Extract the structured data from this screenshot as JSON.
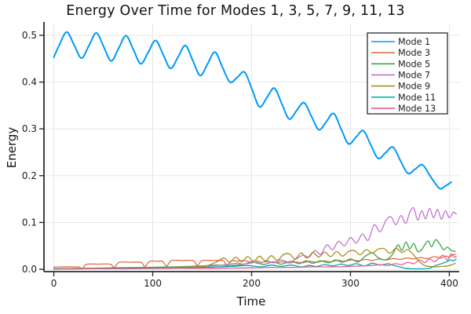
{
  "chart_data": {
    "type": "line",
    "title": "Energy Over Time for Modes 1, 3, 5, 7, 9, 11, 13",
    "xlabel": "Time",
    "ylabel": "Energy",
    "xlim": [
      -10,
      410
    ],
    "ylim": [
      -0.005,
      0.525
    ],
    "grid": true,
    "legend_position": "top-right",
    "xticks": {
      "values": [
        0,
        100,
        200,
        300,
        400
      ],
      "labels": [
        "0",
        "100",
        "200",
        "300",
        "400"
      ]
    },
    "yticks": {
      "values": [
        0.0,
        0.1,
        0.2,
        0.3,
        0.4,
        0.5
      ],
      "labels": [
        "0.0",
        "0.1",
        "0.2",
        "0.3",
        "0.4",
        "0.5"
      ]
    },
    "axis_color": "#2a2e33",
    "grid_color": "#e4e4e4",
    "legend_border_color": "#1a1a1a",
    "series": [
      {
        "name": "Mode 1",
        "color": "#009af9",
        "line_width": 2.0,
        "x": [
          0,
          5.5,
          13,
          20.5,
          28,
          35.5,
          43,
          50.5,
          58,
          65.5,
          73,
          80.5,
          88,
          95.5,
          103,
          110.5,
          118,
          125.5,
          133,
          140.5,
          148,
          155.5,
          163,
          170.5,
          178,
          185.5,
          193,
          200.5,
          208,
          215.5,
          223,
          230.5,
          238,
          245.5,
          253,
          260.5,
          268,
          275.5,
          283,
          290.5,
          298,
          305.5,
          313,
          320.5,
          328,
          335.5,
          343,
          350.5,
          358,
          365.5,
          373,
          381,
          390,
          396,
          402
        ],
        "y": [
          0.453,
          0.479,
          0.507,
          0.479,
          0.451,
          0.478,
          0.505,
          0.475,
          0.445,
          0.472,
          0.499,
          0.469,
          0.439,
          0.464,
          0.489,
          0.459,
          0.429,
          0.453,
          0.478,
          0.446,
          0.414,
          0.439,
          0.464,
          0.432,
          0.4,
          0.41,
          0.421,
          0.384,
          0.347,
          0.367,
          0.387,
          0.354,
          0.321,
          0.339,
          0.356,
          0.327,
          0.298,
          0.315,
          0.333,
          0.3,
          0.268,
          0.282,
          0.296,
          0.266,
          0.237,
          0.249,
          0.261,
          0.232,
          0.205,
          0.214,
          0.223,
          0.198,
          0.173,
          0.178,
          0.186
        ]
      },
      {
        "name": "Mode 3",
        "color": "#e26f46",
        "line_width": 1.3,
        "x": [
          0,
          5,
          15,
          25,
          29,
          33,
          45,
          57,
          61,
          66,
          77,
          88,
          92,
          97,
          105,
          110,
          114,
          119,
          130,
          141,
          145,
          150,
          160,
          171,
          175,
          180,
          186,
          192,
          198,
          204,
          210,
          217,
          224,
          231,
          238,
          245,
          252,
          259,
          266,
          273,
          280,
          287,
          294,
          301,
          308,
          315,
          322,
          329,
          336,
          343,
          350,
          357,
          364,
          371,
          378,
          385,
          391,
          396,
          400,
          403,
          406
        ],
        "y": [
          0.0045,
          0.005,
          0.0052,
          0.005,
          0.002,
          0.0105,
          0.011,
          0.0108,
          0.004,
          0.0148,
          0.015,
          0.0148,
          0.006,
          0.0168,
          0.017,
          0.0168,
          0.007,
          0.0185,
          0.0187,
          0.0185,
          0.008,
          0.0185,
          0.0187,
          0.0185,
          0.009,
          0.0185,
          0.017,
          0.019,
          0.016,
          0.0185,
          0.015,
          0.0165,
          0.014,
          0.016,
          0.0135,
          0.0155,
          0.014,
          0.017,
          0.015,
          0.018,
          0.016,
          0.019,
          0.017,
          0.02,
          0.018,
          0.021,
          0.019,
          0.022,
          0.02,
          0.023,
          0.021,
          0.024,
          0.022,
          0.025,
          0.023,
          0.027,
          0.024,
          0.028,
          0.026,
          0.03,
          0.032
        ]
      },
      {
        "name": "Mode 5",
        "color": "#3da44d",
        "line_width": 1.3,
        "x": [
          0,
          30,
          60,
          90,
          120,
          150,
          165,
          180,
          195,
          205,
          212,
          222,
          230,
          240,
          248,
          255,
          262,
          270,
          278,
          285,
          292,
          300,
          308,
          315,
          322,
          328,
          335,
          342,
          348,
          352,
          356,
          360,
          364,
          368,
          372,
          376,
          379,
          382,
          386,
          390,
          394,
          398,
          402,
          406
        ],
        "y": [
          0.001,
          0.002,
          0.003,
          0.004,
          0.005,
          0.007,
          0.009,
          0.008,
          0.012,
          0.015,
          0.01,
          0.016,
          0.011,
          0.017,
          0.012,
          0.018,
          0.013,
          0.018,
          0.014,
          0.02,
          0.015,
          0.022,
          0.016,
          0.028,
          0.035,
          0.025,
          0.02,
          0.03,
          0.052,
          0.04,
          0.058,
          0.044,
          0.055,
          0.038,
          0.042,
          0.055,
          0.06,
          0.048,
          0.063,
          0.055,
          0.042,
          0.047,
          0.04,
          0.038
        ]
      },
      {
        "name": "Mode 7",
        "color": "#c271d2",
        "line_width": 1.3,
        "x": [
          0,
          30,
          60,
          90,
          120,
          150,
          170,
          185,
          192,
          200,
          208,
          215,
          222,
          230,
          238,
          245,
          252,
          258,
          264,
          270,
          276,
          282,
          288,
          294,
          300,
          306,
          312,
          318,
          324,
          330,
          336,
          341,
          346,
          351,
          356,
          360,
          364,
          368,
          372,
          376,
          380,
          384,
          388,
          392,
          396,
          400,
          404,
          407
        ],
        "y": [
          0.0,
          0.001,
          0.001,
          0.002,
          0.004,
          0.006,
          0.009,
          0.013,
          0.011,
          0.016,
          0.012,
          0.018,
          0.014,
          0.02,
          0.015,
          0.022,
          0.03,
          0.026,
          0.04,
          0.032,
          0.052,
          0.042,
          0.06,
          0.05,
          0.068,
          0.056,
          0.075,
          0.062,
          0.095,
          0.08,
          0.105,
          0.112,
          0.095,
          0.115,
          0.098,
          0.122,
          0.131,
          0.105,
          0.125,
          0.108,
          0.13,
          0.11,
          0.128,
          0.107,
          0.125,
          0.11,
          0.122,
          0.118
        ]
      },
      {
        "name": "Mode 9",
        "color": "#ac8d18",
        "line_width": 1.3,
        "x": [
          0,
          30,
          60,
          90,
          120,
          150,
          158,
          165,
          172,
          178,
          184,
          190,
          196,
          202,
          208,
          214,
          220,
          226,
          232,
          238,
          244,
          250,
          256,
          262,
          268,
          274,
          280,
          286,
          292,
          298,
          304,
          310,
          316,
          322,
          328,
          334,
          340,
          346,
          352,
          358,
          364,
          368,
          372,
          376,
          380,
          386,
          392,
          398,
          403,
          406
        ],
        "y": [
          0.001,
          0.002,
          0.002,
          0.003,
          0.004,
          0.006,
          0.01,
          0.016,
          0.024,
          0.015,
          0.026,
          0.016,
          0.027,
          0.017,
          0.028,
          0.018,
          0.029,
          0.019,
          0.031,
          0.033,
          0.022,
          0.035,
          0.024,
          0.036,
          0.026,
          0.037,
          0.027,
          0.038,
          0.028,
          0.038,
          0.04,
          0.031,
          0.042,
          0.035,
          0.043,
          0.044,
          0.034,
          0.045,
          0.036,
          0.042,
          0.03,
          0.02,
          0.012,
          0.007,
          0.006,
          0.005,
          0.006,
          0.007,
          0.01,
          0.013
        ]
      },
      {
        "name": "Mode 11",
        "color": "#00a9ad",
        "line_width": 1.3,
        "x": [
          0,
          30,
          60,
          90,
          120,
          150,
          165,
          180,
          195,
          210,
          220,
          230,
          240,
          250,
          258,
          266,
          274,
          282,
          290,
          298,
          306,
          314,
          322,
          330,
          338,
          344,
          350,
          356,
          362,
          368,
          374,
          380,
          386,
          392,
          397,
          401,
          404,
          407
        ],
        "y": [
          0.001,
          0.001,
          0.002,
          0.002,
          0.003,
          0.004,
          0.005,
          0.006,
          0.008,
          0.005,
          0.009,
          0.006,
          0.009,
          0.005,
          0.008,
          0.006,
          0.01,
          0.007,
          0.011,
          0.008,
          0.012,
          0.007,
          0.013,
          0.009,
          0.012,
          0.008,
          0.005,
          0.002,
          0.001,
          0.001,
          0.001,
          0.002,
          0.008,
          0.012,
          0.016,
          0.02,
          0.018,
          0.022
        ]
      },
      {
        "name": "Mode 13",
        "color": "#ed5d92",
        "line_width": 1.3,
        "x": [
          0,
          40,
          80,
          120,
          160,
          200,
          220,
          240,
          260,
          280,
          300,
          312,
          322,
          330,
          338,
          345,
          352,
          358,
          364,
          370,
          375,
          380,
          385,
          390,
          394,
          398,
          402,
          405,
          407
        ],
        "y": [
          0.0,
          0.001,
          0.001,
          0.002,
          0.002,
          0.003,
          0.004,
          0.004,
          0.005,
          0.005,
          0.006,
          0.007,
          0.008,
          0.01,
          0.008,
          0.012,
          0.01,
          0.015,
          0.012,
          0.02,
          0.014,
          0.022,
          0.016,
          0.025,
          0.03,
          0.02,
          0.033,
          0.026,
          0.028
        ]
      }
    ]
  }
}
